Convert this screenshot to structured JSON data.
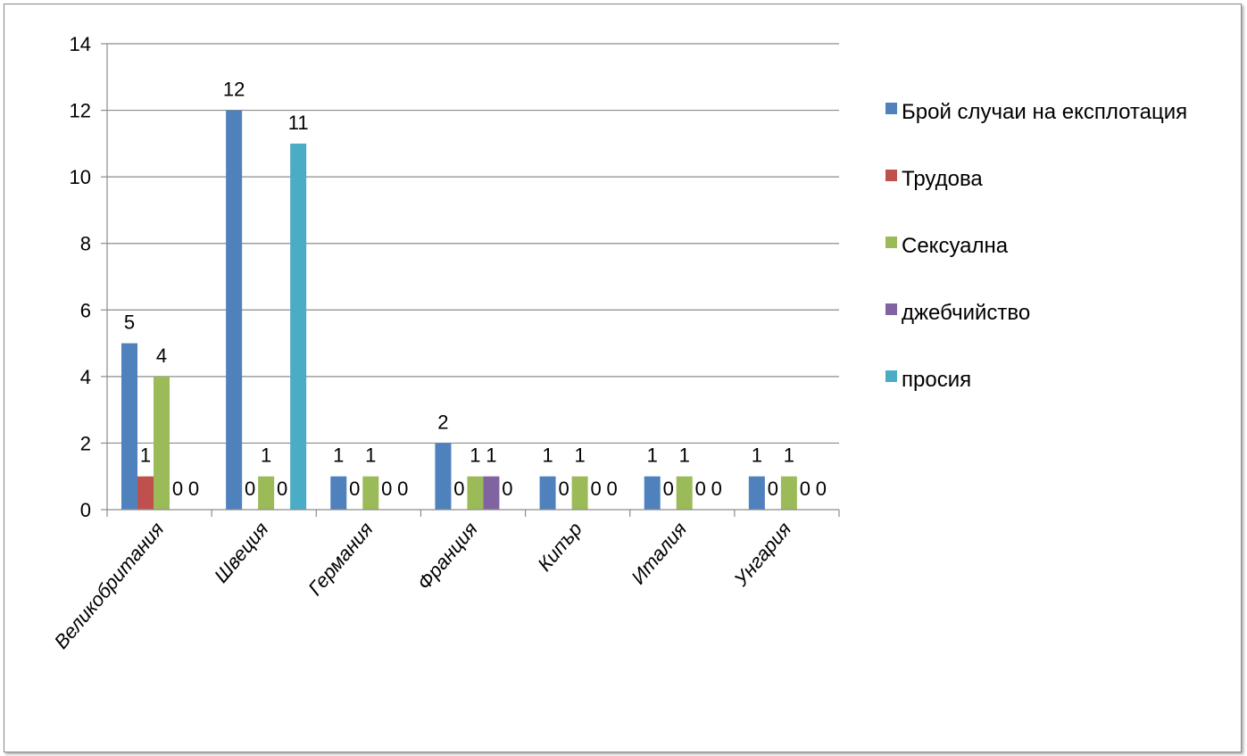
{
  "chart_data": {
    "type": "bar",
    "categories": [
      "Великобритания",
      "Швеция",
      "Германия",
      "Франция",
      "Кипър",
      "Италия",
      "Унгария"
    ],
    "series": [
      {
        "name": "Брой случаи на експлотация",
        "color": "#4F81BD",
        "values": [
          5,
          12,
          1,
          2,
          1,
          1,
          1
        ]
      },
      {
        "name": "Трудова",
        "color": "#C0504D",
        "values": [
          1,
          0,
          0,
          0,
          0,
          0,
          0
        ]
      },
      {
        "name": "Сексуална",
        "color": "#9BBB59",
        "values": [
          4,
          1,
          1,
          1,
          1,
          1,
          1
        ]
      },
      {
        "name": "джебчийство",
        "color": "#8064A2",
        "values": [
          0,
          0,
          0,
          1,
          0,
          0,
          0
        ]
      },
      {
        "name": "просия",
        "color": "#4BACC6",
        "values": [
          0,
          11,
          0,
          0,
          0,
          0,
          0
        ]
      }
    ],
    "ylim": [
      0,
      14
    ],
    "yticks": [
      0,
      2,
      4,
      6,
      8,
      10,
      12,
      14
    ],
    "grid": true,
    "legend_position": "right",
    "data_labels": true
  }
}
